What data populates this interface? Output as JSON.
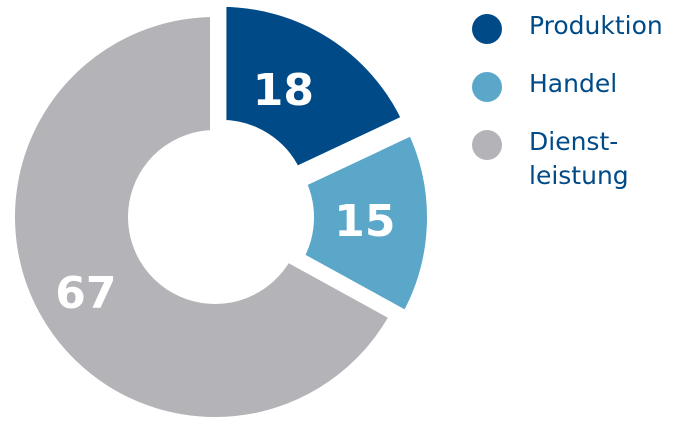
{
  "chart_data": {
    "type": "pie",
    "categories": [
      "Produktion",
      "Handel",
      "Dienst-\nleistung"
    ],
    "values": [
      18,
      15,
      67
    ],
    "slice_labels": [
      "18",
      "15",
      "67"
    ],
    "colors": [
      "#004b87",
      "#5ba7c9",
      "#b4b4b8"
    ],
    "legend_position": "right",
    "donut": true
  }
}
